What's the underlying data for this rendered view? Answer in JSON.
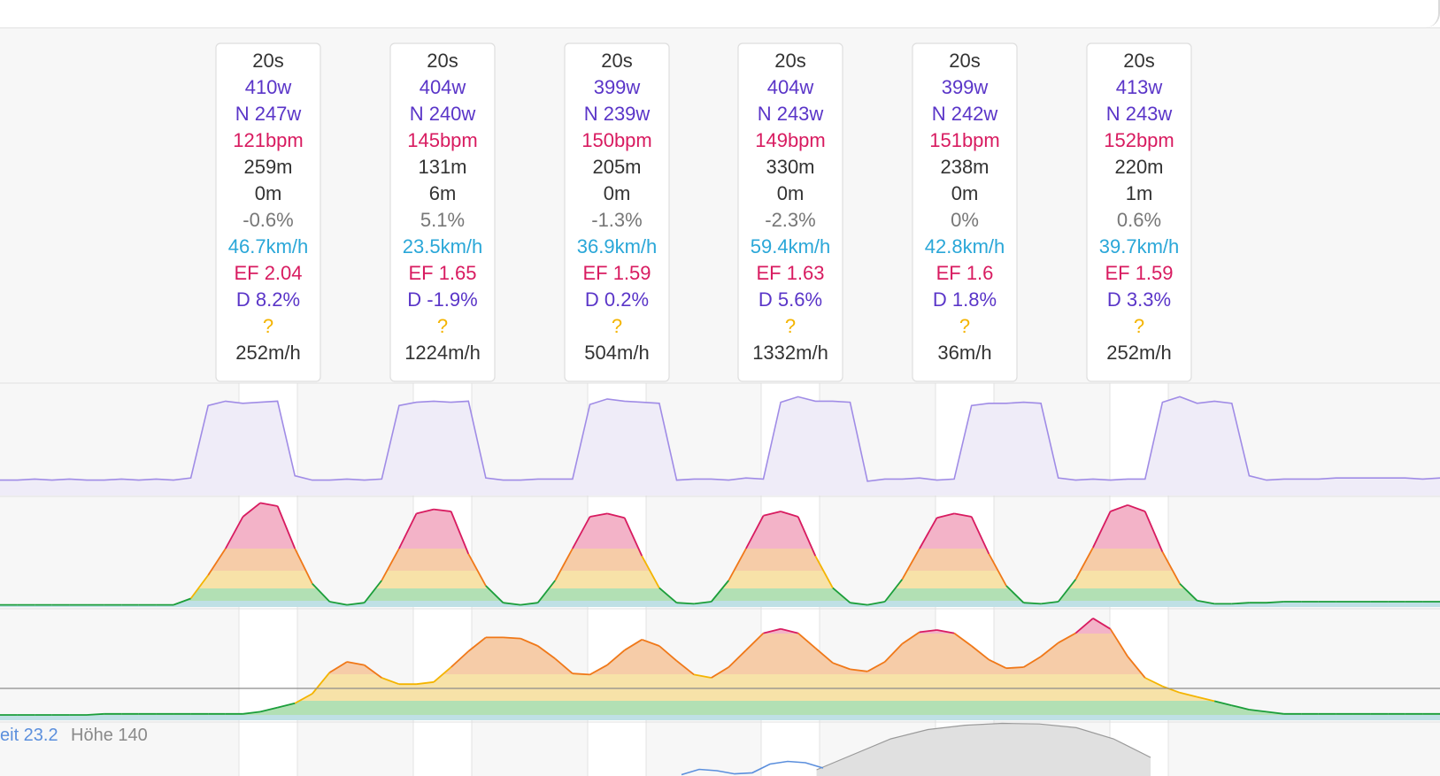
{
  "colors": {
    "background": "#f7f7f7",
    "power": "#a08ce6",
    "power_fill": "#efecf8",
    "watts": "#5a35c8",
    "heart_rate": "#d81b60",
    "distance": "#333333",
    "grade": "#777777",
    "speed": "#2aa7d8",
    "question": "#f4b400",
    "zone_red": "#f3b3c8",
    "zone_orange": "#f6cca8",
    "zone_yellow": "#f7e2a8",
    "zone_green": "#b2e0b4",
    "zone_base": "#bfe0e5",
    "altitude_fill": "#e0e0e0",
    "speed_line": "#5b8fdd"
  },
  "intervals": [
    {
      "duration": "20s",
      "power": "410w",
      "np": "N 247w",
      "hr": "121bpm",
      "distance": "259m",
      "elevation": "0m",
      "grade": "-0.6%",
      "speed": "46.7km/h",
      "ef": "EF 2.04",
      "decoupling": "D 8.2%",
      "flag": "?",
      "vam": "252m/h"
    },
    {
      "duration": "20s",
      "power": "404w",
      "np": "N 240w",
      "hr": "145bpm",
      "distance": "131m",
      "elevation": "6m",
      "grade": "5.1%",
      "speed": "23.5km/h",
      "ef": "EF 1.65",
      "decoupling": "D -1.9%",
      "flag": "?",
      "vam": "1224m/h"
    },
    {
      "duration": "20s",
      "power": "399w",
      "np": "N 239w",
      "hr": "150bpm",
      "distance": "205m",
      "elevation": "0m",
      "grade": "-1.3%",
      "speed": "36.9km/h",
      "ef": "EF 1.59",
      "decoupling": "D 0.2%",
      "flag": "?",
      "vam": "504m/h"
    },
    {
      "duration": "20s",
      "power": "404w",
      "np": "N 243w",
      "hr": "149bpm",
      "distance": "330m",
      "elevation": "0m",
      "grade": "-2.3%",
      "speed": "59.4km/h",
      "ef": "EF 1.63",
      "decoupling": "D 5.6%",
      "flag": "?",
      "vam": "1332m/h"
    },
    {
      "duration": "20s",
      "power": "399w",
      "np": "N 242w",
      "hr": "151bpm",
      "distance": "238m",
      "elevation": "0m",
      "grade": "0%",
      "speed": "42.8km/h",
      "ef": "EF 1.6",
      "decoupling": "D 1.8%",
      "flag": "?",
      "vam": "36m/h"
    },
    {
      "duration": "20s",
      "power": "413w",
      "np": "N 243w",
      "hr": "152bpm",
      "distance": "220m",
      "elevation": "1m",
      "grade": "0.6%",
      "speed": "39.7km/h",
      "ef": "EF 1.59",
      "decoupling": "D 3.3%",
      "flag": "?",
      "vam": "252m/h"
    }
  ],
  "legend": {
    "speed_label": "eit 23.2",
    "altitude_label": "Höhe 140"
  },
  "chart_data": {
    "type": "area",
    "series": [
      {
        "values": [
          0.14,
          0.14,
          0.15,
          0.14,
          0.15,
          0.14,
          0.14,
          0.15,
          0.14,
          0.15,
          0.14,
          0.16,
          0.82,
          0.86,
          0.84,
          0.85,
          0.86,
          0.18,
          0.14,
          0.14,
          0.15,
          0.14,
          0.15,
          0.82,
          0.85,
          0.86,
          0.85,
          0.86,
          0.16,
          0.14,
          0.14,
          0.15,
          0.15,
          0.15,
          0.83,
          0.88,
          0.86,
          0.85,
          0.84,
          0.14,
          0.15,
          0.15,
          0.14,
          0.16,
          0.15,
          0.85,
          0.9,
          0.86,
          0.86,
          0.85,
          0.13,
          0.15,
          0.15,
          0.16,
          0.14,
          0.15,
          0.82,
          0.84,
          0.84,
          0.85,
          0.84,
          0.16,
          0.14,
          0.15,
          0.14,
          0.15,
          0.15,
          0.85,
          0.9,
          0.84,
          0.86,
          0.84,
          0.18,
          0.14,
          0.15,
          0.15,
          0.15,
          0.16,
          0.16,
          0.16,
          0.16,
          0.16,
          0.15,
          0.16
        ]
      },
      {
        "values": [
          0.02,
          0.02,
          0.02,
          0.02,
          0.02,
          0.02,
          0.02,
          0.02,
          0.02,
          0.02,
          0.02,
          0.08,
          0.3,
          0.55,
          0.85,
          0.98,
          0.95,
          0.55,
          0.22,
          0.05,
          0.02,
          0.04,
          0.25,
          0.55,
          0.88,
          0.92,
          0.9,
          0.5,
          0.2,
          0.04,
          0.02,
          0.04,
          0.25,
          0.55,
          0.85,
          0.88,
          0.84,
          0.48,
          0.18,
          0.04,
          0.03,
          0.05,
          0.25,
          0.55,
          0.86,
          0.9,
          0.85,
          0.48,
          0.18,
          0.04,
          0.02,
          0.05,
          0.26,
          0.55,
          0.84,
          0.88,
          0.85,
          0.5,
          0.2,
          0.04,
          0.03,
          0.05,
          0.26,
          0.56,
          0.9,
          0.96,
          0.9,
          0.52,
          0.22,
          0.06,
          0.03,
          0.03,
          0.04,
          0.04,
          0.05,
          0.05,
          0.05,
          0.05,
          0.05,
          0.05,
          0.05,
          0.05,
          0.05,
          0.05
        ]
      },
      {
        "values": [
          0.05,
          0.05,
          0.05,
          0.05,
          0.05,
          0.05,
          0.06,
          0.06,
          0.06,
          0.06,
          0.06,
          0.06,
          0.06,
          0.06,
          0.06,
          0.08,
          0.12,
          0.16,
          0.25,
          0.45,
          0.55,
          0.52,
          0.4,
          0.34,
          0.34,
          0.36,
          0.5,
          0.65,
          0.78,
          0.78,
          0.77,
          0.7,
          0.58,
          0.44,
          0.43,
          0.52,
          0.66,
          0.76,
          0.7,
          0.56,
          0.43,
          0.4,
          0.5,
          0.66,
          0.82,
          0.86,
          0.82,
          0.68,
          0.54,
          0.48,
          0.46,
          0.55,
          0.72,
          0.83,
          0.85,
          0.82,
          0.7,
          0.57,
          0.49,
          0.5,
          0.6,
          0.73,
          0.82,
          0.96,
          0.86,
          0.6,
          0.4,
          0.32,
          0.26,
          0.22,
          0.18,
          0.14,
          0.1,
          0.08,
          0.06,
          0.06,
          0.06,
          0.06,
          0.06,
          0.06,
          0.06,
          0.06,
          0.06,
          0.06
        ]
      },
      {
        "values": [
          null,
          null,
          null,
          null,
          null,
          null,
          null,
          null,
          null,
          null,
          null,
          null,
          null,
          null,
          null,
          null,
          null,
          null,
          null,
          null,
          null,
          null,
          0.1,
          0.35,
          0.6,
          0.75,
          0.82,
          0.85,
          0.84,
          0.78,
          0.6,
          0.3
        ]
      },
      {
        "values": [
          0.05,
          0.25,
          0.2,
          0.08,
          0.12,
          0.45,
          0.55,
          0.5,
          0.3
        ]
      }
    ]
  }
}
